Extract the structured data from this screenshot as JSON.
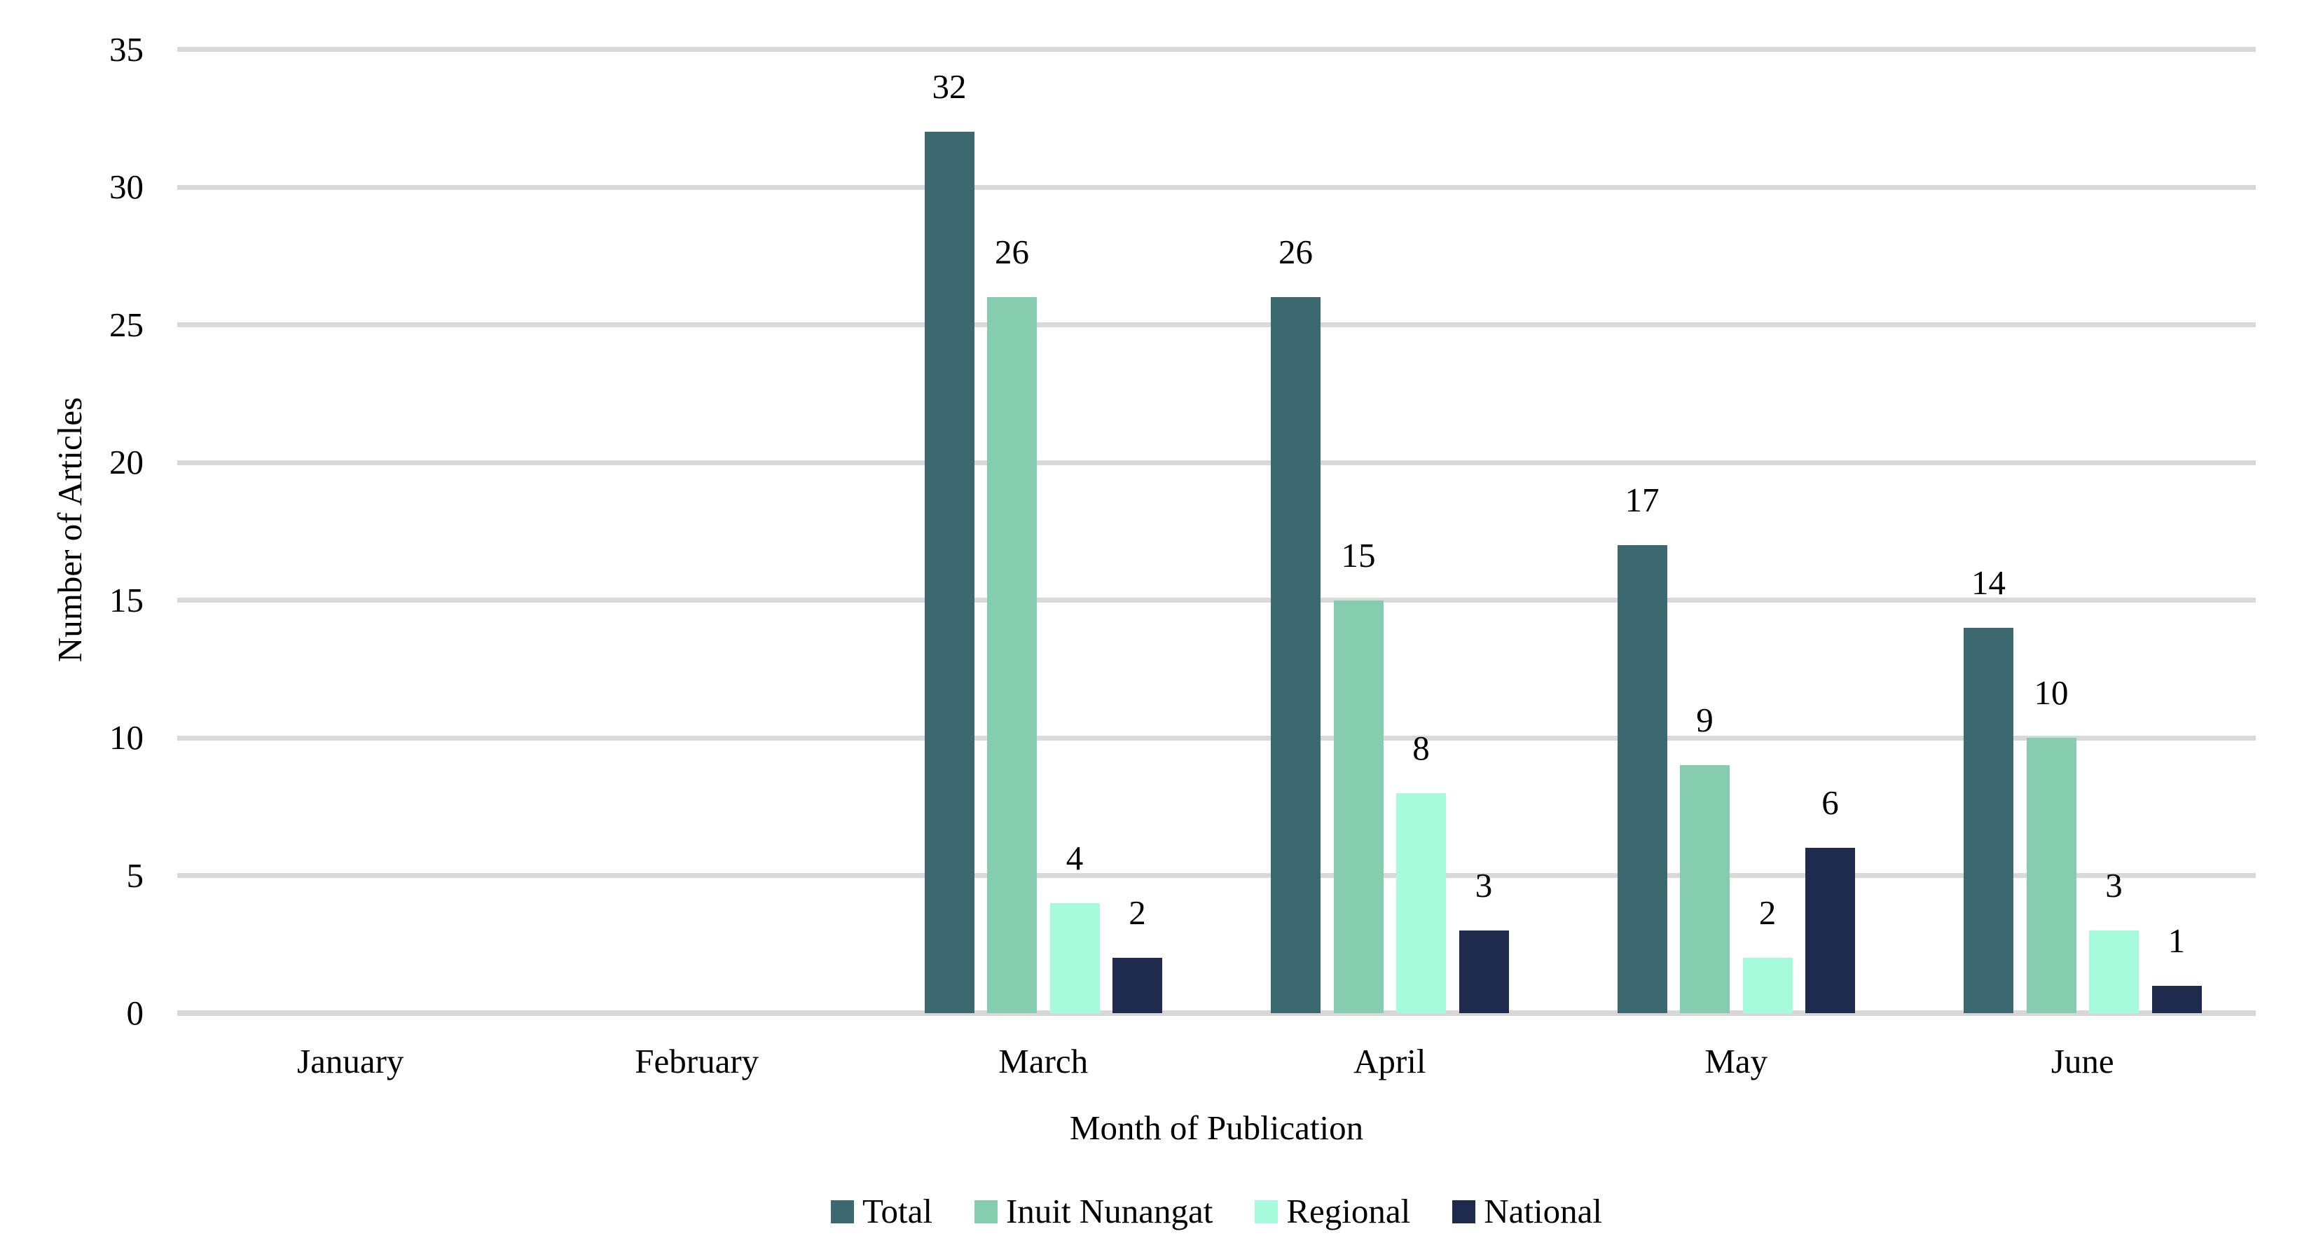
{
  "figure": {
    "background": "#FFFFFF",
    "text_color": "#000000"
  },
  "chart_data": {
    "type": "bar",
    "title": "",
    "categories": [
      "January",
      "February",
      "March",
      "April",
      "May",
      "June"
    ],
    "series": [
      {
        "name": "Total",
        "color": "#3C696F",
        "values": [
          0,
          0,
          32,
          26,
          17,
          14
        ]
      },
      {
        "name": "Inuit Nunangat",
        "color": "#86CDAF",
        "values": [
          0,
          0,
          26,
          15,
          9,
          10
        ]
      },
      {
        "name": "Regional",
        "color": "#A5FBDC",
        "values": [
          0,
          0,
          4,
          8,
          2,
          3
        ]
      },
      {
        "name": "National",
        "color": "#1F2A4F",
        "values": [
          0,
          0,
          2,
          3,
          6,
          1
        ]
      }
    ],
    "xlabel": "Month of Publication",
    "ylabel": "Number of Articles",
    "ylim": [
      0,
      35
    ],
    "yticks": [
      0,
      5,
      10,
      15,
      20,
      25,
      30,
      35
    ],
    "grid": "horizontal",
    "gridline_color": "#D9D9D9",
    "axis_line_color": "#D7D7D7",
    "data_labels": true,
    "hide_zero_labels": true,
    "legend_position": "bottom"
  }
}
